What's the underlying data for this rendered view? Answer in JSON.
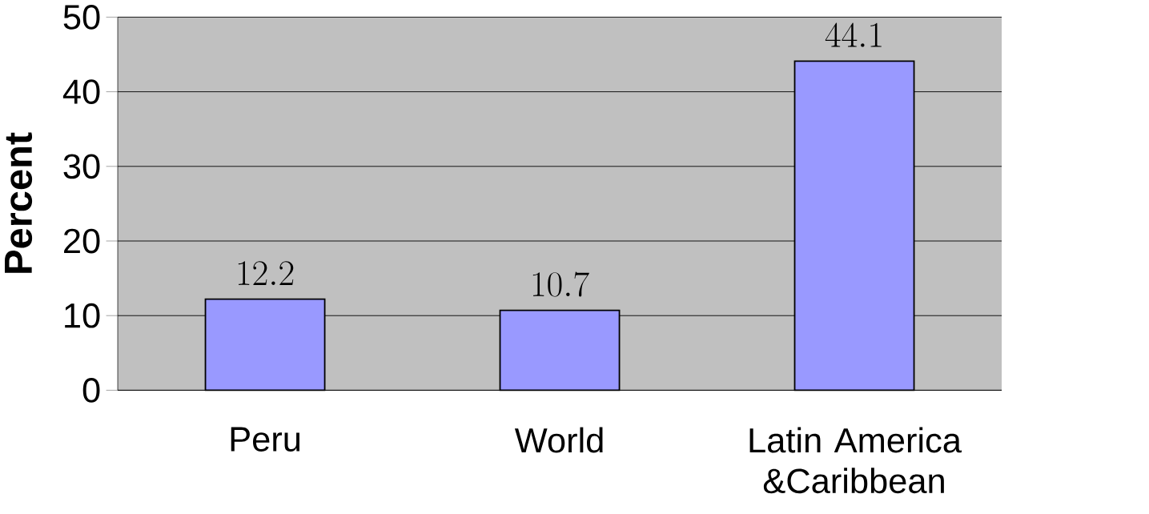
{
  "chart_data": {
    "type": "bar",
    "ylabel": "Percent",
    "categories": [
      "Peru",
      "World",
      "Latin America &Caribbean"
    ],
    "values": [
      12.2,
      10.7,
      44.1
    ],
    "color": "#9999ff",
    "ylim": [
      0,
      50
    ],
    "yticks": [
      0,
      10,
      20,
      30,
      40,
      50
    ],
    "grid": "y",
    "data_labels": true
  }
}
